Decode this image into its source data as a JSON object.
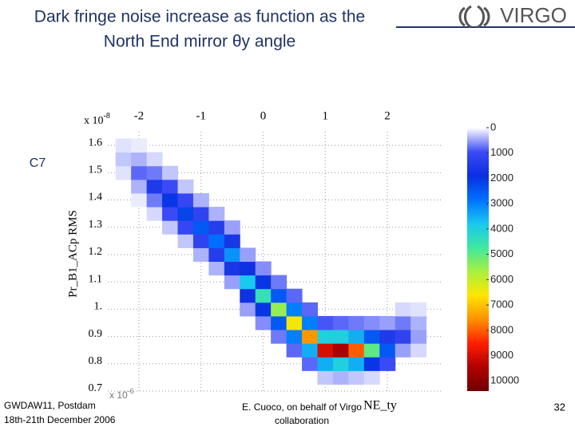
{
  "slide": {
    "title_lines": [
      "Dark fringe noise increase as function as the",
      "North End mirror θy angle"
    ],
    "logo": "VIRGO",
    "tag": "C7",
    "footer_left": [
      "GWDAW11, Postdam",
      "18th-21th December 2006"
    ],
    "footer_center": [
      "E. Cuoco, on behalf of Virgo",
      "collaboration"
    ],
    "page_number": "32"
  },
  "chart_data": {
    "type": "heatmap",
    "x_label": "NE_ty",
    "y_label": "Pr_B1_ACp RMS",
    "x_multiplier": {
      "base": "x 10",
      "exp": "-6"
    },
    "y_multiplier": {
      "base": "x 10",
      "exp": "-8"
    },
    "xlim": [
      -2.5,
      2.9
    ],
    "xticks": [
      -2,
      -1,
      0,
      1,
      2
    ],
    "ylim": [
      0.7,
      1.65
    ],
    "yticks": [
      0.7,
      0.8,
      0.9,
      {
        "value": 1,
        "label": "1."
      },
      1.1,
      1.2,
      1.3,
      1.4,
      1.5,
      1.6
    ],
    "grid": true,
    "x": [
      -2.25,
      -2.0,
      -1.75,
      -1.5,
      -1.25,
      -1.0,
      -0.75,
      -0.5,
      -0.25,
      0,
      0.25,
      0.5,
      0.75,
      1.0,
      1.25,
      1.5,
      1.75,
      2.0,
      2.25,
      2.5
    ],
    "y": [
      0.75,
      0.8,
      0.85,
      0.9,
      0.95,
      1.0,
      1.05,
      1.1,
      1.15,
      1.2,
      1.25,
      1.3,
      1.35,
      1.4,
      1.45,
      1.5,
      1.55,
      1.6
    ],
    "z": [
      [
        null,
        null,
        null,
        null,
        null,
        null,
        null,
        null,
        null,
        null,
        null,
        null,
        null,
        300,
        400,
        300,
        200,
        null,
        null,
        null
      ],
      [
        null,
        null,
        null,
        null,
        null,
        null,
        null,
        null,
        null,
        null,
        null,
        null,
        800,
        3500,
        4000,
        3500,
        2000,
        1000,
        null,
        null
      ],
      [
        null,
        null,
        null,
        null,
        null,
        null,
        null,
        null,
        null,
        null,
        null,
        800,
        3500,
        9000,
        9500,
        8000,
        5000,
        2500,
        500,
        200
      ],
      [
        null,
        null,
        null,
        null,
        null,
        null,
        null,
        null,
        null,
        null,
        700,
        3000,
        7500,
        4000,
        4000,
        3500,
        2500,
        1500,
        1200,
        500
      ],
      [
        null,
        null,
        null,
        null,
        null,
        null,
        null,
        null,
        null,
        600,
        2500,
        6500,
        3000,
        900,
        800,
        700,
        600,
        500,
        700,
        400
      ],
      [
        null,
        null,
        null,
        null,
        null,
        null,
        null,
        null,
        500,
        2000,
        5500,
        3000,
        800,
        null,
        null,
        null,
        null,
        null,
        200,
        150
      ],
      [
        null,
        null,
        null,
        null,
        null,
        null,
        null,
        null,
        1800,
        4500,
        2500,
        800,
        null,
        null,
        null,
        null,
        null,
        null,
        null,
        null
      ],
      [
        null,
        null,
        null,
        null,
        null,
        null,
        null,
        500,
        3800,
        2000,
        700,
        null,
        null,
        null,
        null,
        null,
        null,
        null,
        null,
        null
      ],
      [
        null,
        null,
        null,
        null,
        null,
        null,
        400,
        1600,
        1800,
        600,
        null,
        null,
        null,
        null,
        null,
        null,
        null,
        null,
        null,
        null
      ],
      [
        null,
        null,
        null,
        null,
        null,
        400,
        1400,
        3200,
        500,
        null,
        null,
        null,
        null,
        null,
        null,
        null,
        null,
        null,
        null,
        null
      ],
      [
        null,
        null,
        null,
        null,
        300,
        1200,
        2800,
        1600,
        null,
        null,
        null,
        null,
        null,
        null,
        null,
        null,
        null,
        null,
        null,
        null
      ],
      [
        null,
        null,
        null,
        300,
        1100,
        2500,
        1400,
        500,
        null,
        null,
        null,
        null,
        null,
        null,
        null,
        null,
        null,
        null,
        null,
        null
      ],
      [
        null,
        null,
        200,
        1000,
        2200,
        1200,
        400,
        null,
        null,
        null,
        null,
        null,
        null,
        null,
        null,
        null,
        null,
        null,
        null,
        null
      ],
      [
        null,
        100,
        700,
        2000,
        1100,
        400,
        null,
        null,
        null,
        null,
        null,
        null,
        null,
        null,
        null,
        null,
        null,
        null,
        null,
        null
      ],
      [
        null,
        400,
        1500,
        1000,
        300,
        null,
        null,
        null,
        null,
        null,
        null,
        null,
        null,
        null,
        null,
        null,
        null,
        null,
        null,
        null
      ],
      [
        150,
        800,
        700,
        300,
        null,
        null,
        null,
        null,
        null,
        null,
        null,
        null,
        null,
        null,
        null,
        null,
        null,
        null,
        null,
        null
      ],
      [
        300,
        400,
        200,
        null,
        null,
        null,
        null,
        null,
        null,
        null,
        null,
        null,
        null,
        null,
        null,
        null,
        null,
        null,
        null,
        null
      ],
      [
        150,
        100,
        null,
        null,
        null,
        null,
        null,
        null,
        null,
        null,
        null,
        null,
        null,
        null,
        null,
        null,
        null,
        null,
        null,
        null
      ]
    ],
    "clim": [
      0,
      10400
    ],
    "cticks": [
      0,
      1000,
      2000,
      3000,
      4000,
      5000,
      6000,
      7000,
      8000,
      9000,
      10000
    ],
    "colormap": [
      "#ffffff",
      "#3d4cf5",
      "#0a2ee0",
      "#0070ff",
      "#18c8f0",
      "#3ee8a0",
      "#a8f040",
      "#ffe600",
      "#ff9000",
      "#ff2000",
      "#b00000",
      "#700000"
    ]
  }
}
